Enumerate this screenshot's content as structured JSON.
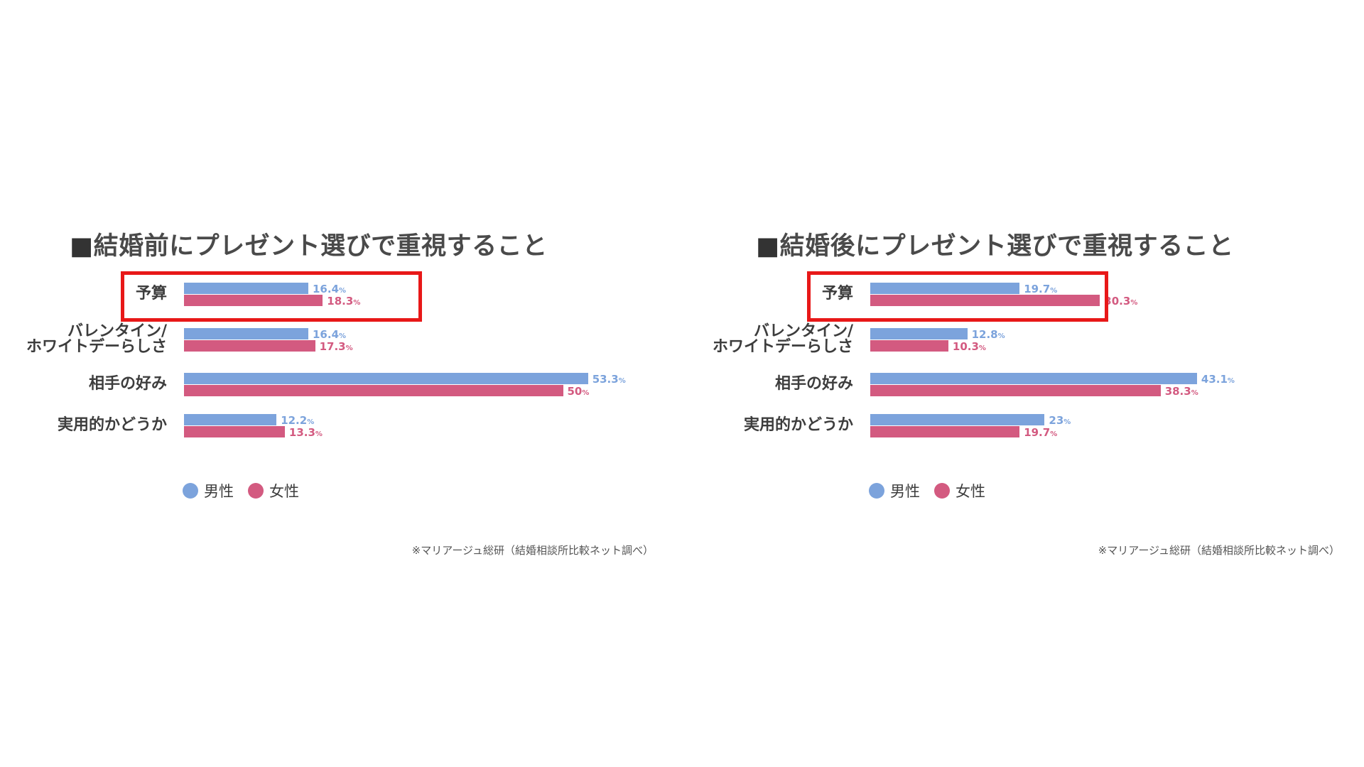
{
  "colors": {
    "male": "#7ca3dc",
    "female": "#d35a80",
    "highlight": "#e81818"
  },
  "legend": {
    "male_label": "男性",
    "female_label": "女性"
  },
  "chart_data": [
    {
      "type": "bar",
      "orientation": "horizontal",
      "title_square": "■",
      "title_text": "結婚前にプレゼント選びで重視すること",
      "categories": [
        [
          "予算"
        ],
        [
          "バレンタイン/",
          "ホワイトデーらしさ"
        ],
        [
          "相手の好み"
        ],
        [
          "実用的かどうか"
        ]
      ],
      "series": [
        {
          "name": "男性",
          "values": [
            16.4,
            16.4,
            53.3,
            12.2
          ],
          "labels": [
            "16.4",
            "16.4",
            "53.3",
            "12.2"
          ]
        },
        {
          "name": "女性",
          "values": [
            18.3,
            17.3,
            50,
            13.3
          ],
          "labels": [
            "18.3",
            "17.3",
            "50",
            "13.3"
          ]
        }
      ],
      "unit": "%",
      "highlighted_category": "予算",
      "source": "※マリアージュ総研（結婚相談所比較ネット調べ）"
    },
    {
      "type": "bar",
      "orientation": "horizontal",
      "title_square": "■",
      "title_text": "結婚後にプレゼント選びで重視すること",
      "categories": [
        [
          "予算"
        ],
        [
          "バレンタイン/",
          "ホワイトデーらしさ"
        ],
        [
          "相手の好み"
        ],
        [
          "実用的かどうか"
        ]
      ],
      "series": [
        {
          "name": "男性",
          "values": [
            19.7,
            12.8,
            43.1,
            23
          ],
          "labels": [
            "19.7",
            "12.8",
            "43.1",
            "23"
          ]
        },
        {
          "name": "女性",
          "values": [
            30.3,
            10.3,
            38.3,
            19.7
          ],
          "labels": [
            "30.3",
            "10.3",
            "38.3",
            "19.7"
          ]
        }
      ],
      "unit": "%",
      "highlighted_category": "予算",
      "source": "※マリアージュ総研（結婚相談所比較ネット調べ）"
    }
  ]
}
